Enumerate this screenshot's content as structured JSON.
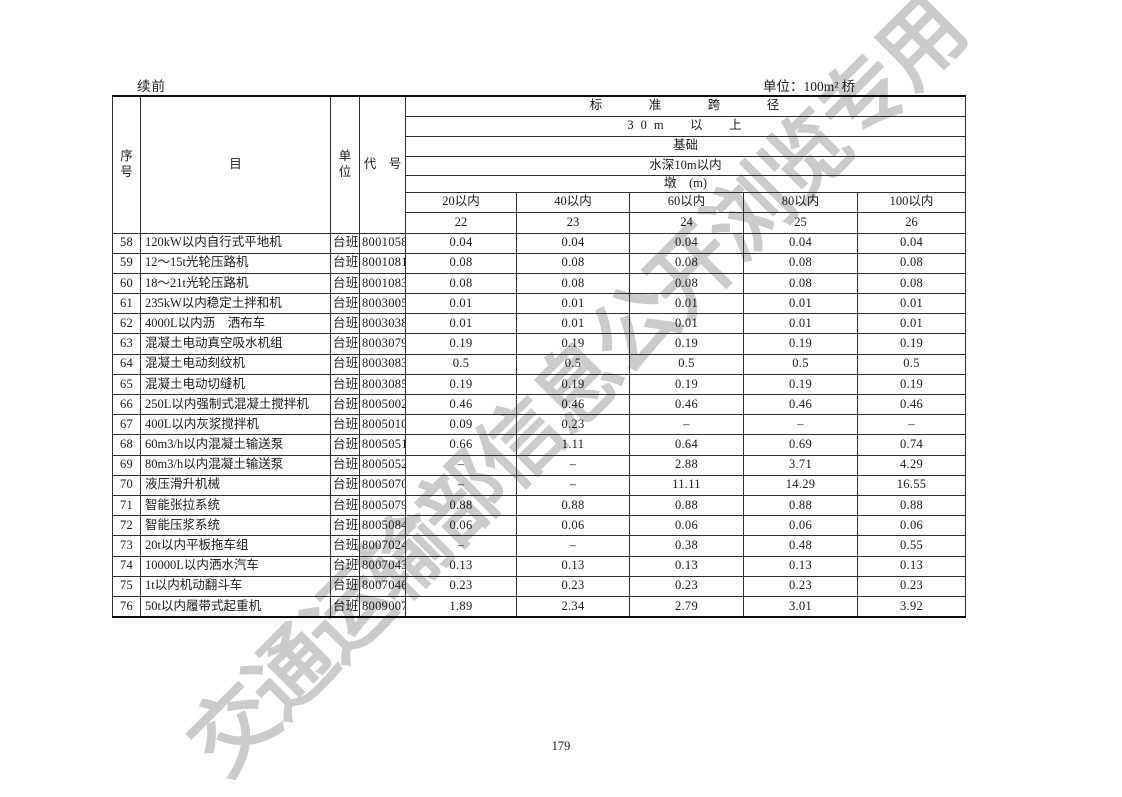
{
  "page": {
    "continued_label": "续前",
    "unit_label": "单位：100m² 桥",
    "page_number": "179",
    "watermark": "交通运输部信息公开浏览专用"
  },
  "table": {
    "left_headers": {
      "seq": "序\n号",
      "item": "目",
      "unit": "单\n位",
      "code": "代　号"
    },
    "span_headers": [
      "标　准　跨　径",
      "30m　以　上",
      "基础",
      "水深10m以内",
      "墩　(m)"
    ],
    "col_headers": [
      "20以内",
      "40以内",
      "60以内",
      "80以内",
      "100以内"
    ],
    "col_numbers": [
      "22",
      "23",
      "24",
      "25",
      "26"
    ],
    "rows": [
      {
        "no": "58",
        "item": "120kW以内自行式平地机",
        "unit": "台班",
        "code": "8001058",
        "values": [
          "0.04",
          "0.04",
          "0.04",
          "0.04",
          "0.04"
        ]
      },
      {
        "no": "59",
        "item": "12～15t光轮压路机",
        "unit": "台班",
        "code": "8001081",
        "values": [
          "0.08",
          "0.08",
          "0.08",
          "0.08",
          "0.08"
        ]
      },
      {
        "no": "60",
        "item": "18～21t光轮压路机",
        "unit": "台班",
        "code": "8001083",
        "values": [
          "0.08",
          "0.08",
          "0.08",
          "0.08",
          "0.08"
        ]
      },
      {
        "no": "61",
        "item": "235kW以内稳定土拌和机",
        "unit": "台班",
        "code": "8003005",
        "values": [
          "0.01",
          "0.01",
          "0.01",
          "0.01",
          "0.01"
        ]
      },
      {
        "no": "62",
        "item": "4000L以内沥　洒布车",
        "unit": "台班",
        "code": "8003038",
        "values": [
          "0.01",
          "0.01",
          "0.01",
          "0.01",
          "0.01"
        ]
      },
      {
        "no": "63",
        "item": "混凝土电动真空吸水机组",
        "unit": "台班",
        "code": "8003079",
        "values": [
          "0.19",
          "0.19",
          "0.19",
          "0.19",
          "0.19"
        ]
      },
      {
        "no": "64",
        "item": "混凝土电动刻纹机",
        "unit": "台班",
        "code": "8003083",
        "values": [
          "0.5",
          "0.5",
          "0.5",
          "0.5",
          "0.5"
        ]
      },
      {
        "no": "65",
        "item": "混凝土电动切缝机",
        "unit": "台班",
        "code": "8003085",
        "values": [
          "0.19",
          "0.19",
          "0.19",
          "0.19",
          "0.19"
        ]
      },
      {
        "no": "66",
        "item": "250L以内强制式混凝土搅拌机",
        "unit": "台班",
        "code": "8005002",
        "values": [
          "0.46",
          "0.46",
          "0.46",
          "0.46",
          "0.46"
        ]
      },
      {
        "no": "67",
        "item": "400L以内灰浆搅拌机",
        "unit": "台班",
        "code": "8005010",
        "values": [
          "0.09",
          "0.23",
          "–",
          "–",
          "–"
        ]
      },
      {
        "no": "68",
        "item": "60m3/h以内混凝土输送泵",
        "unit": "台班",
        "code": "8005051",
        "values": [
          "0.66",
          "1.11",
          "0.64",
          "0.69",
          "0.74"
        ]
      },
      {
        "no": "69",
        "item": "80m3/h以内混凝土输送泵",
        "unit": "台班",
        "code": "8005052",
        "values": [
          "–",
          "–",
          "2.88",
          "3.71",
          "4.29"
        ]
      },
      {
        "no": "70",
        "item": "液压滑升机械",
        "unit": "台班",
        "code": "8005070",
        "values": [
          "–",
          "–",
          "11.11",
          "14.29",
          "16.55"
        ]
      },
      {
        "no": "71",
        "item": "智能张拉系统",
        "unit": "台班",
        "code": "8005079",
        "values": [
          "0.88",
          "0.88",
          "0.88",
          "0.88",
          "0.88"
        ]
      },
      {
        "no": "72",
        "item": "智能压浆系统",
        "unit": "台班",
        "code": "8005084",
        "values": [
          "0.06",
          "0.06",
          "0.06",
          "0.06",
          "0.06"
        ]
      },
      {
        "no": "73",
        "item": "20t以内平板拖车组",
        "unit": "台班",
        "code": "8007024",
        "values": [
          "–",
          "–",
          "0.38",
          "0.48",
          "0.55"
        ]
      },
      {
        "no": "74",
        "item": "10000L以内洒水汽车",
        "unit": "台班",
        "code": "8007043",
        "values": [
          "0.13",
          "0.13",
          "0.13",
          "0.13",
          "0.13"
        ]
      },
      {
        "no": "75",
        "item": "1t以内机动翻斗车",
        "unit": "台班",
        "code": "8007046",
        "values": [
          "0.23",
          "0.23",
          "0.23",
          "0.23",
          "0.23"
        ]
      },
      {
        "no": "76",
        "item": "50t以内履带式起重机",
        "unit": "台班",
        "code": "8009007",
        "values": [
          "1.89",
          "2.34",
          "2.79",
          "3.01",
          "3.92"
        ]
      }
    ]
  }
}
